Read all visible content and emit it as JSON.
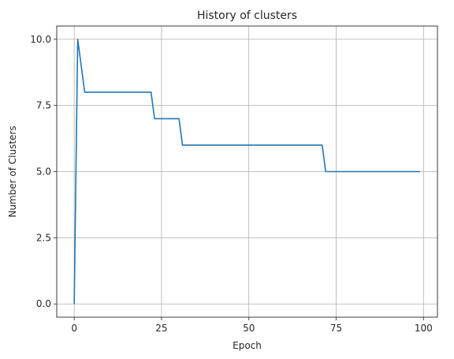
{
  "chart_data": {
    "type": "line",
    "title": "History of clusters",
    "xlabel": "Epoch",
    "ylabel": "Number of Clusters",
    "xlim": [
      -5,
      104
    ],
    "ylim": [
      -0.5,
      10.5
    ],
    "xticks": [
      0,
      25,
      50,
      75,
      100
    ],
    "xtick_labels": [
      "0",
      "25",
      "50",
      "75",
      "100"
    ],
    "yticks": [
      0,
      2.5,
      5,
      7.5,
      10
    ],
    "ytick_labels": [
      "0.0",
      "2.5",
      "5.0",
      "7.5",
      "10.0"
    ],
    "grid": true,
    "line_color": "#1f77b4",
    "series": [
      {
        "x": [
          0,
          1,
          3,
          22,
          23,
          30,
          31,
          71,
          72,
          99
        ],
        "y": [
          0,
          10,
          8,
          8,
          7,
          7,
          6,
          6,
          5,
          5
        ]
      }
    ]
  }
}
